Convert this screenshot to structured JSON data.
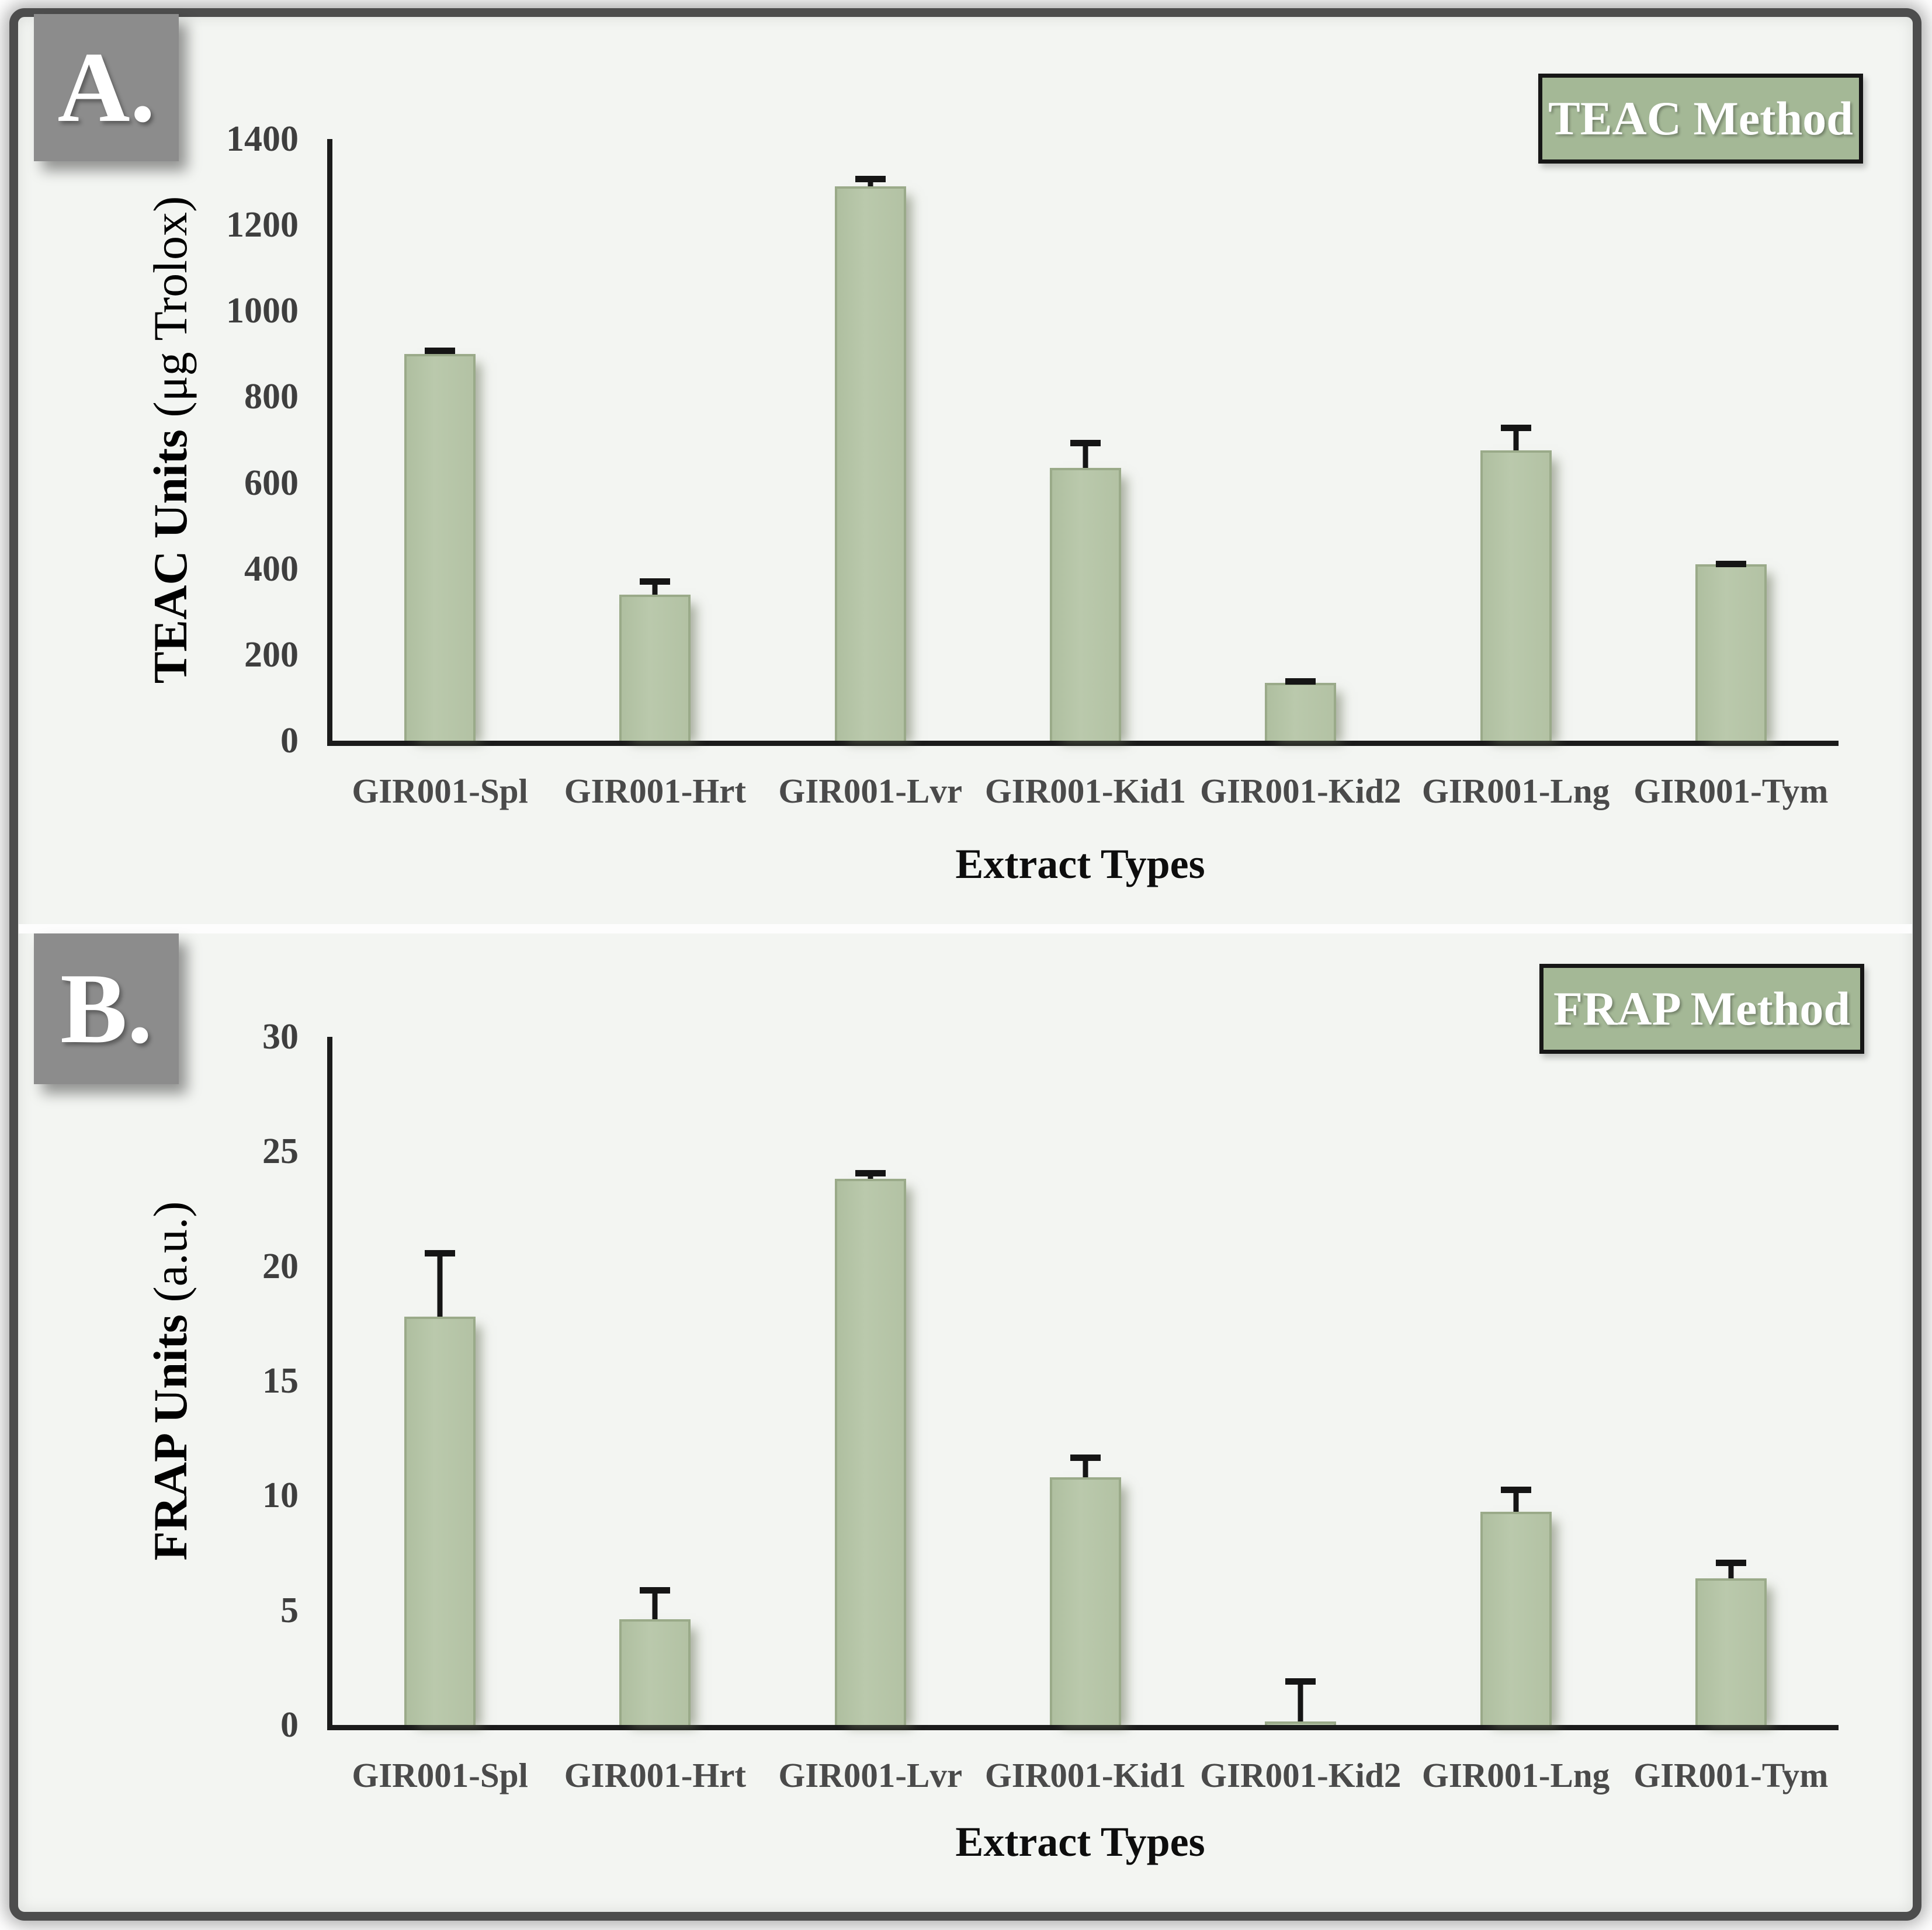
{
  "figure": {
    "description": "Two-panel antioxidant activity bar figure",
    "panel_count": 2
  },
  "panels": [
    {
      "label": "A."
    },
    {
      "label": "B."
    }
  ],
  "colors": {
    "content_bg": "#f3f5f2",
    "frame_border": "#4d4d4d",
    "panel_label_bg": "#8c8c8c",
    "panel_label_text": "#ffffff",
    "badge_bg": "#a4b896",
    "badge_border": "#161616",
    "badge_text": "#ffffff",
    "bar_fill": "#b6c5a8",
    "bar_border": "#9aaa89",
    "axis": "#1b1b1b",
    "tick_text": "#3e3e3e",
    "category_text": "#4a4a4a",
    "error_bar": "#151515"
  },
  "chart_data": [
    {
      "type": "bar",
      "title": "TEAC Method",
      "method_badge": "TEAC Method",
      "categories": [
        "GIR001-Spl",
        "GIR001-Hrt",
        "GIR001-Lvr",
        "GIR001-Kid1",
        "GIR001-Kid2",
        "GIR001-Lng",
        "GIR001-Tym"
      ],
      "values": [
        900,
        340,
        1290,
        635,
        135,
        675,
        410
      ],
      "errors": [
        15,
        38,
        25,
        65,
        10,
        60,
        8
      ],
      "xlabel": "Extract Types",
      "ylabel_main": "TEAC Units",
      "ylabel_unit": "(μg Trolox)",
      "ylim": [
        0,
        1400
      ],
      "grid": false,
      "legend": "none",
      "yticks": [
        {
          "value": 0,
          "label": "0"
        },
        {
          "value": 200,
          "label": "200"
        },
        {
          "value": 400,
          "label": "400"
        },
        {
          "value": 600,
          "label": "600"
        },
        {
          "value": 800,
          "label": "800"
        },
        {
          "value": 1000,
          "label": "1000"
        },
        {
          "value": 1200,
          "label": "1200"
        },
        {
          "value": 1400,
          "label": "1400"
        }
      ]
    },
    {
      "type": "bar",
      "title": "FRAP Method",
      "method_badge": "FRAP Method",
      "categories": [
        "GIR001-Spl",
        "GIR001-Hrt",
        "GIR001-Lvr",
        "GIR001-Kid1",
        "GIR001-Kid2",
        "GIR001-Lng",
        "GIR001-Tym"
      ],
      "values": [
        17.8,
        4.6,
        23.8,
        10.8,
        0.15,
        9.3,
        6.4
      ],
      "errors": [
        2.9,
        1.4,
        0.4,
        1.0,
        1.9,
        1.1,
        0.8
      ],
      "xlabel": "Extract Types",
      "ylabel_main": "FRAP Units",
      "ylabel_unit": "(a.u.)",
      "ylim": [
        0,
        30
      ],
      "grid": false,
      "legend": "none",
      "yticks": [
        {
          "value": 0,
          "label": "0"
        },
        {
          "value": 5,
          "label": "5"
        },
        {
          "value": 10,
          "label": "10"
        },
        {
          "value": 15,
          "label": "15"
        },
        {
          "value": 20,
          "label": "20"
        },
        {
          "value": 25,
          "label": "25"
        },
        {
          "value": 30,
          "label": "30"
        }
      ]
    }
  ]
}
